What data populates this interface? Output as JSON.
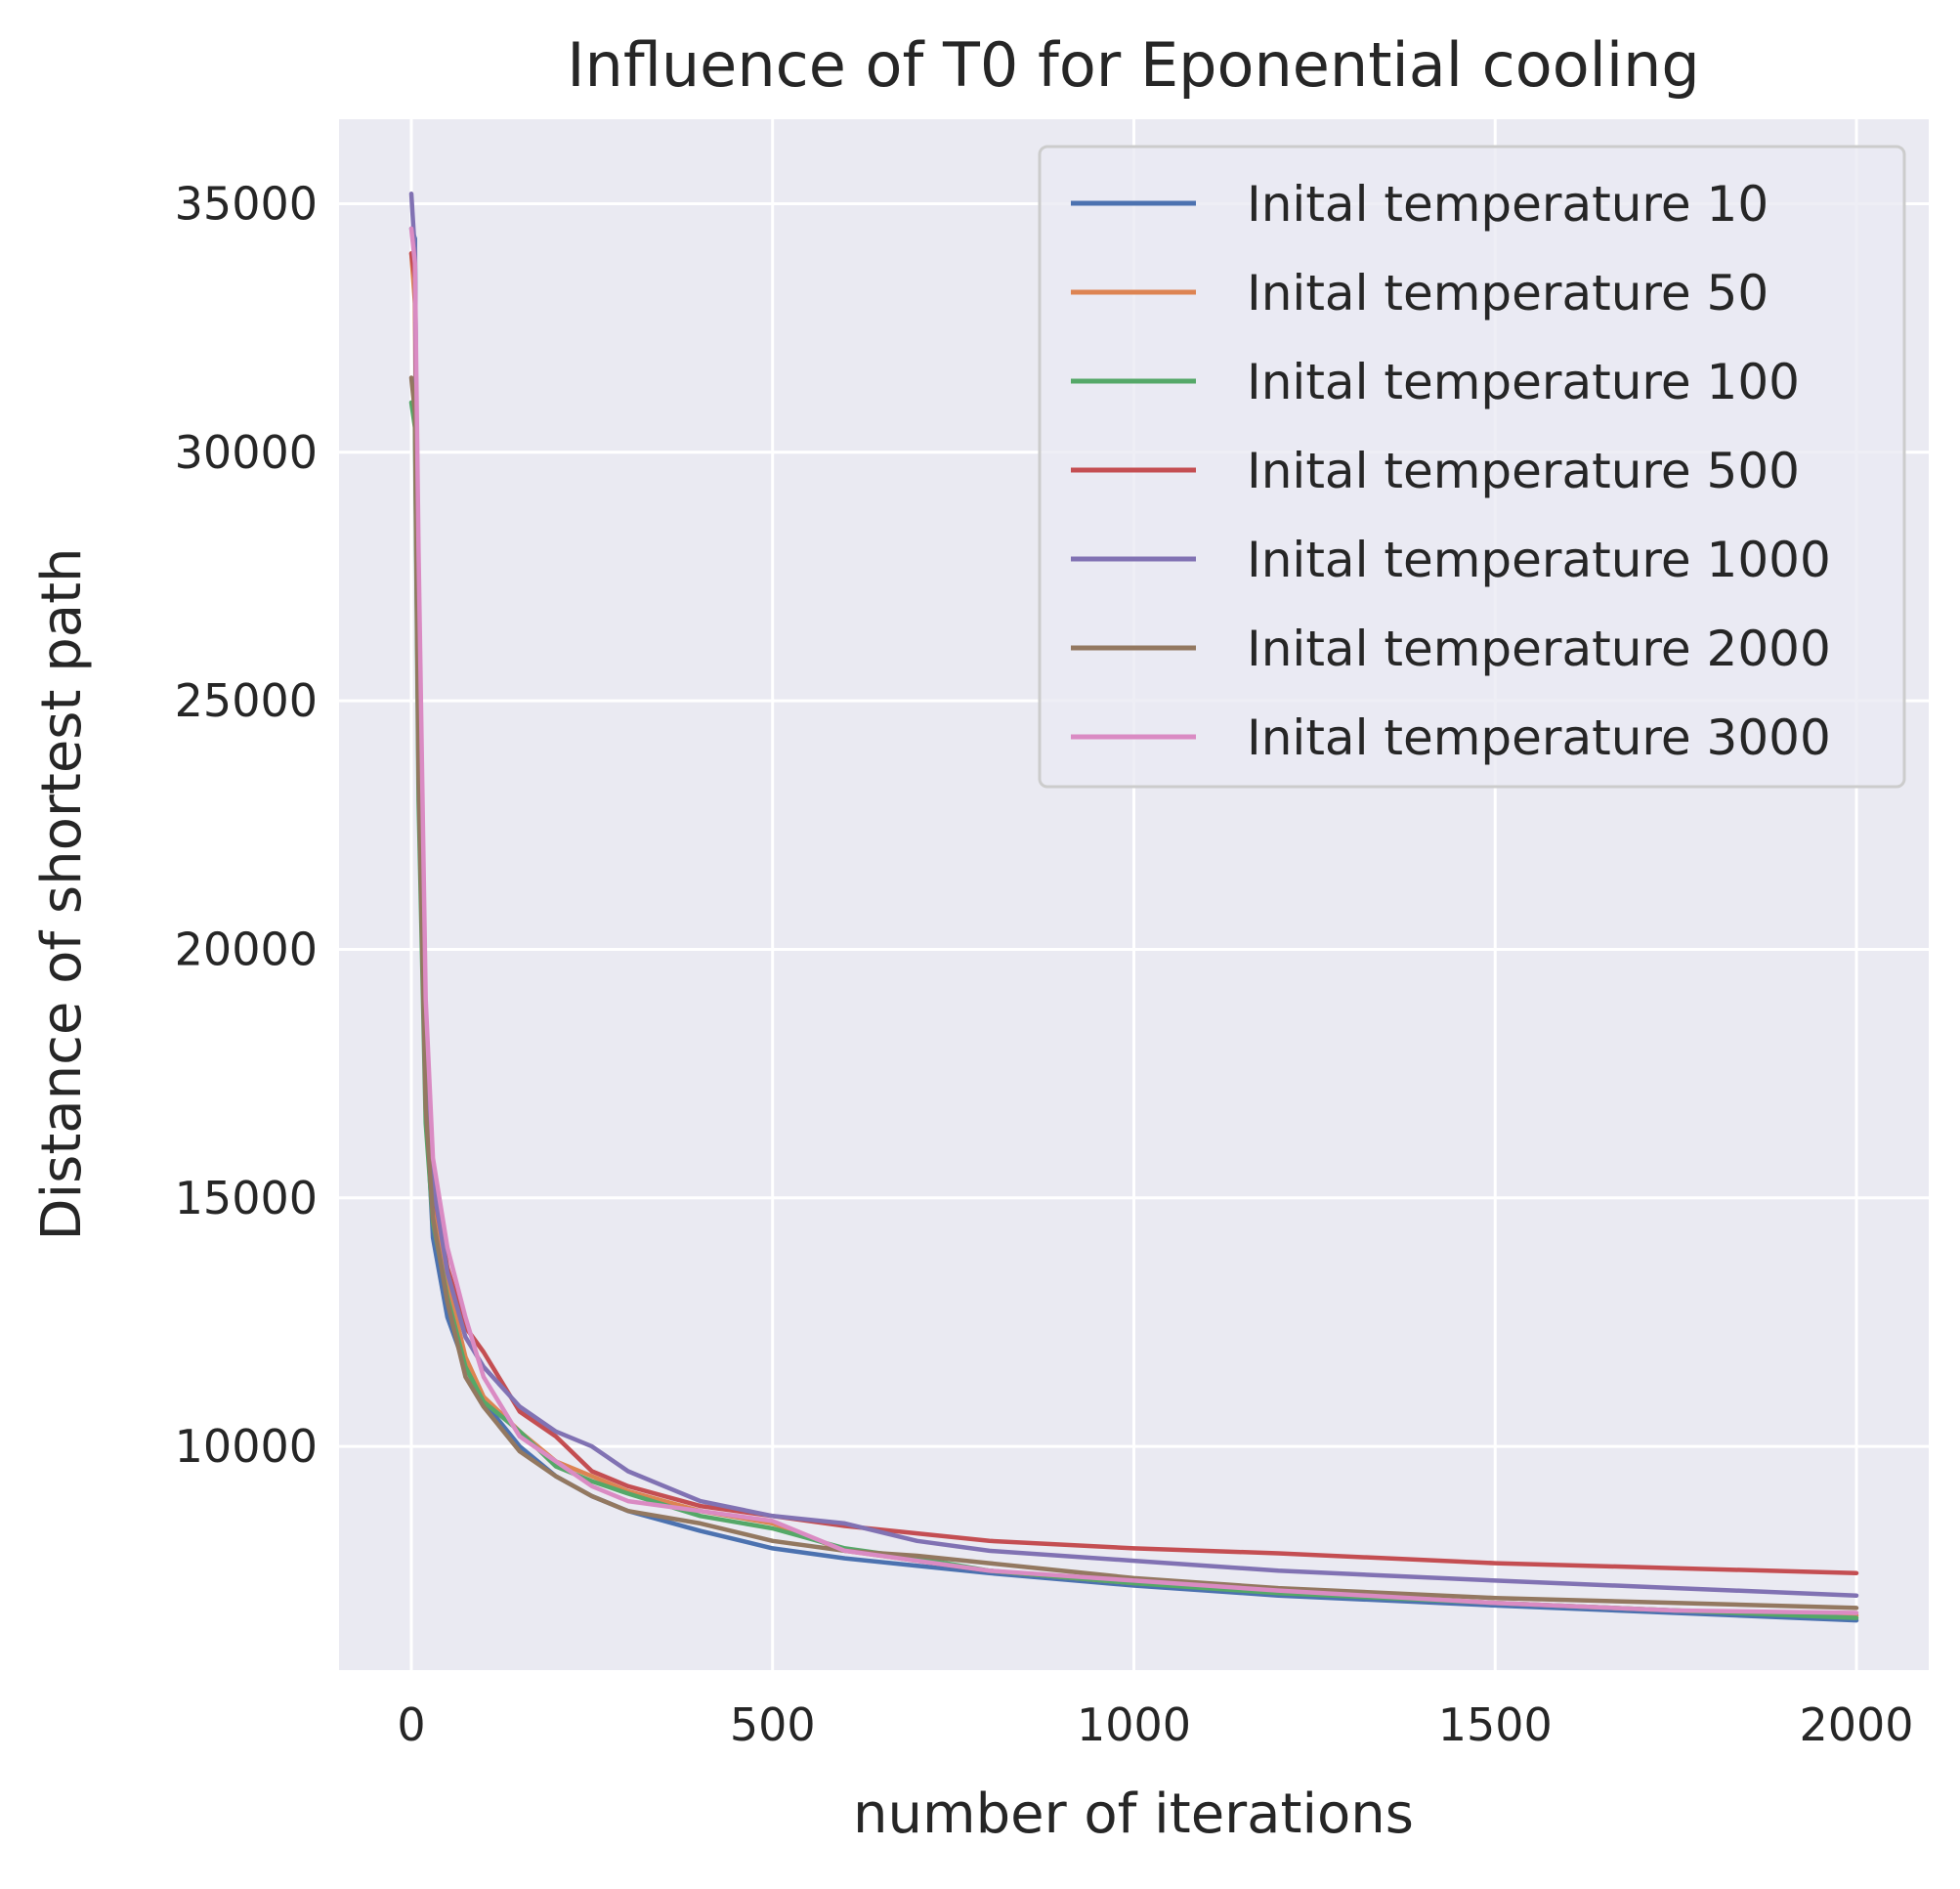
{
  "chart_data": {
    "type": "line",
    "title": "Influence of T0 for Eponential cooling",
    "xlabel": "number of iterations",
    "ylabel": "Distance of shortest path",
    "xlim": [
      -100,
      2100
    ],
    "ylim": [
      5500,
      36700
    ],
    "xticks": [
      0,
      500,
      1000,
      1500,
      2000
    ],
    "yticks": [
      10000,
      15000,
      20000,
      25000,
      30000,
      35000
    ],
    "grid": true,
    "legend_position": "top-right",
    "x": [
      0,
      5,
      10,
      20,
      30,
      50,
      75,
      100,
      150,
      200,
      250,
      300,
      400,
      500,
      600,
      700,
      800,
      1000,
      1200,
      1500,
      1750,
      2000
    ],
    "series": [
      {
        "name": "Inital temperature 10",
        "color": "#4c72b0",
        "values": [
          34500,
          34300,
          24000,
          17000,
          14200,
          12600,
          11600,
          10900,
          10000,
          9400,
          9000,
          8700,
          8300,
          7950,
          7750,
          7600,
          7450,
          7200,
          7000,
          6800,
          6650,
          6500
        ]
      },
      {
        "name": "Inital temperature 50",
        "color": "#dd8452",
        "values": [
          34000,
          33000,
          24500,
          17400,
          15000,
          13300,
          11800,
          11000,
          10300,
          9700,
          9400,
          9100,
          8700,
          8450,
          7900,
          7700,
          7500,
          7250,
          7100,
          6850,
          6700,
          6600
        ]
      },
      {
        "name": "Inital temperature 100",
        "color": "#55a868",
        "values": [
          31000,
          30500,
          23000,
          16500,
          14500,
          13000,
          11600,
          10900,
          10300,
          9600,
          9300,
          9050,
          8600,
          8350,
          7950,
          7750,
          7500,
          7250,
          7050,
          6850,
          6700,
          6550
        ]
      },
      {
        "name": "Inital temperature 500",
        "color": "#c44e52",
        "values": [
          34000,
          33500,
          25000,
          18000,
          15200,
          13600,
          12400,
          11900,
          10700,
          10200,
          9500,
          9200,
          8800,
          8600,
          8400,
          8250,
          8100,
          7950,
          7850,
          7650,
          7550,
          7450
        ]
      },
      {
        "name": "Inital temperature 1000",
        "color": "#8172b3",
        "values": [
          35200,
          34000,
          25500,
          18000,
          15300,
          13500,
          12200,
          11600,
          10800,
          10300,
          10000,
          9500,
          8900,
          8600,
          8450,
          8100,
          7900,
          7700,
          7500,
          7300,
          7150,
          7000
        ]
      },
      {
        "name": "Inital temperature 2000",
        "color": "#937860",
        "values": [
          31500,
          30800,
          23500,
          16800,
          14600,
          12900,
          11400,
          10800,
          9900,
          9400,
          9000,
          8700,
          8450,
          8100,
          7900,
          7800,
          7650,
          7350,
          7150,
          6950,
          6850,
          6750
        ]
      },
      {
        "name": "Inital temperature 3000",
        "color": "#da8bc3",
        "values": [
          34500,
          33800,
          28000,
          19000,
          15800,
          14000,
          12600,
          11400,
          10200,
          9700,
          9200,
          8900,
          8700,
          8500,
          7900,
          7700,
          7500,
          7300,
          7100,
          6850,
          6700,
          6650
        ]
      }
    ]
  }
}
